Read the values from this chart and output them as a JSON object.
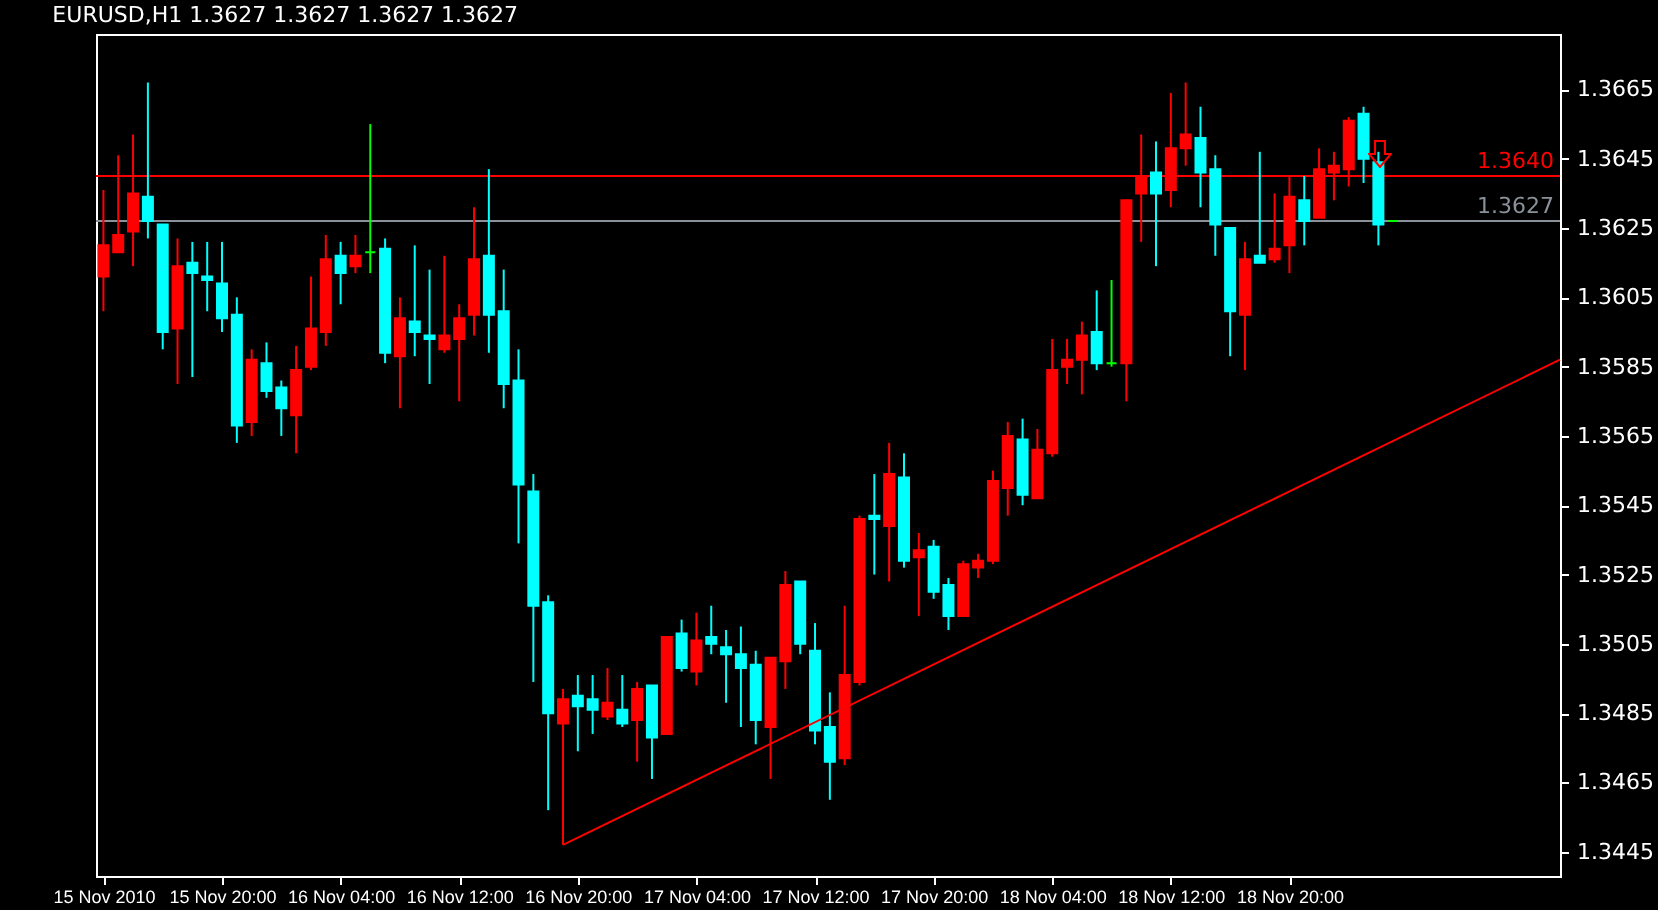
{
  "chart_data": {
    "type": "candlestick",
    "title": "EURUSD,H1  1.3627 1.3627 1.3627 1.3627",
    "x": [
      "2010-11-15T12:00",
      "2010-11-15T13:00",
      "2010-11-15T14:00",
      "2010-11-15T15:00",
      "2010-11-15T16:00",
      "2010-11-15T17:00",
      "2010-11-15T18:00",
      "2010-11-15T19:00",
      "2010-11-15T20:00",
      "2010-11-15T21:00",
      "2010-11-15T22:00",
      "2010-11-15T23:00",
      "2010-11-16T00:00",
      "2010-11-16T01:00",
      "2010-11-16T02:00",
      "2010-11-16T03:00",
      "2010-11-16T04:00",
      "2010-11-16T05:00",
      "2010-11-16T06:00",
      "2010-11-16T07:00",
      "2010-11-16T08:00",
      "2010-11-16T09:00",
      "2010-11-16T10:00",
      "2010-11-16T11:00",
      "2010-11-16T12:00",
      "2010-11-16T13:00",
      "2010-11-16T14:00",
      "2010-11-16T15:00",
      "2010-11-16T16:00",
      "2010-11-16T17:00",
      "2010-11-16T18:00",
      "2010-11-16T19:00",
      "2010-11-16T20:00",
      "2010-11-16T21:00",
      "2010-11-16T22:00",
      "2010-11-16T23:00",
      "2010-11-17T00:00",
      "2010-11-17T01:00",
      "2010-11-17T02:00",
      "2010-11-17T03:00",
      "2010-11-17T04:00",
      "2010-11-17T05:00",
      "2010-11-17T06:00",
      "2010-11-17T07:00",
      "2010-11-17T08:00",
      "2010-11-17T09:00",
      "2010-11-17T10:00",
      "2010-11-17T11:00",
      "2010-11-17T12:00",
      "2010-11-17T13:00",
      "2010-11-17T14:00",
      "2010-11-17T15:00",
      "2010-11-17T16:00",
      "2010-11-17T17:00",
      "2010-11-17T18:00",
      "2010-11-17T19:00",
      "2010-11-17T20:00",
      "2010-11-17T21:00",
      "2010-11-17T22:00",
      "2010-11-17T23:00",
      "2010-11-18T00:00",
      "2010-11-18T01:00",
      "2010-11-18T02:00",
      "2010-11-18T03:00",
      "2010-11-18T04:00",
      "2010-11-18T05:00",
      "2010-11-18T06:00",
      "2010-11-18T07:00",
      "2010-11-18T08:00",
      "2010-11-18T09:00",
      "2010-11-18T10:00",
      "2010-11-18T11:00",
      "2010-11-18T12:00",
      "2010-11-18T13:00",
      "2010-11-18T14:00",
      "2010-11-18T15:00",
      "2010-11-18T16:00",
      "2010-11-18T17:00",
      "2010-11-18T18:00",
      "2010-11-18T19:00",
      "2010-11-18T20:00",
      "2010-11-18T21:00",
      "2010-11-18T22:00",
      "2010-11-18T23:00",
      "2010-11-19T00:00",
      "2010-11-19T01:00",
      "2010-11-19T02:00",
      "2010-11-19T03:00"
    ],
    "ohlc": [
      [
        1.3611,
        1.3636,
        1.3601,
        1.362
      ],
      [
        1.3618,
        1.3646,
        1.3618,
        1.3623
      ],
      [
        1.3624,
        1.3652,
        1.3614,
        1.3635
      ],
      [
        1.3634,
        1.3667,
        1.3622,
        1.3627
      ],
      [
        1.3626,
        1.3626,
        1.359,
        1.3595
      ],
      [
        1.3596,
        1.3622,
        1.358,
        1.3614
      ],
      [
        1.3615,
        1.3621,
        1.3582,
        1.3612
      ],
      [
        1.3611,
        1.3621,
        1.3601,
        1.361
      ],
      [
        1.3609,
        1.3621,
        1.3595,
        1.3599
      ],
      [
        1.36,
        1.3605,
        1.3563,
        1.3568
      ],
      [
        1.3569,
        1.359,
        1.3565,
        1.3587
      ],
      [
        1.3586,
        1.3592,
        1.3576,
        1.3578
      ],
      [
        1.3579,
        1.3581,
        1.3565,
        1.3573
      ],
      [
        1.3571,
        1.3591,
        1.356,
        1.3584
      ],
      [
        1.3585,
        1.3611,
        1.3584,
        1.3596
      ],
      [
        1.3595,
        1.3623,
        1.3591,
        1.3616
      ],
      [
        1.3617,
        1.3621,
        1.3603,
        1.3612
      ],
      [
        1.3614,
        1.3623,
        1.3612,
        1.3617
      ],
      [
        1.3618,
        1.3655,
        1.3612,
        1.3618
      ],
      [
        1.3619,
        1.3622,
        1.3586,
        1.3589
      ],
      [
        1.3588,
        1.3605,
        1.3573,
        1.3599
      ],
      [
        1.3598,
        1.362,
        1.3588,
        1.3595
      ],
      [
        1.3594,
        1.3613,
        1.358,
        1.3593
      ],
      [
        1.359,
        1.3617,
        1.3589,
        1.3594
      ],
      [
        1.3593,
        1.3603,
        1.3575,
        1.3599
      ],
      [
        1.36,
        1.3631,
        1.3594,
        1.3616
      ],
      [
        1.3617,
        1.3642,
        1.3589,
        1.36
      ],
      [
        1.3601,
        1.3613,
        1.3573,
        1.358
      ],
      [
        1.3581,
        1.359,
        1.3534,
        1.3551
      ],
      [
        1.3549,
        1.3554,
        1.3494,
        1.3516
      ],
      [
        1.3517,
        1.3519,
        1.3457,
        1.3485
      ],
      [
        1.3482,
        1.3492,
        1.3447,
        1.3489
      ],
      [
        1.349,
        1.3496,
        1.3474,
        1.3487
      ],
      [
        1.3489,
        1.3496,
        1.3479,
        1.3486
      ],
      [
        1.3484,
        1.3498,
        1.3483,
        1.3488
      ],
      [
        1.3486,
        1.3496,
        1.3481,
        1.3482
      ],
      [
        1.3483,
        1.3494,
        1.3471,
        1.3492
      ],
      [
        1.3493,
        1.3493,
        1.3466,
        1.3478
      ],
      [
        1.3479,
        1.3507,
        1.3479,
        1.3507
      ],
      [
        1.3508,
        1.3512,
        1.3497,
        1.3498
      ],
      [
        1.3497,
        1.3514,
        1.3493,
        1.3506
      ],
      [
        1.3507,
        1.3516,
        1.3502,
        1.3505
      ],
      [
        1.3504,
        1.3509,
        1.3488,
        1.3502
      ],
      [
        1.3502,
        1.351,
        1.3481,
        1.3498
      ],
      [
        1.3499,
        1.3503,
        1.3476,
        1.3483
      ],
      [
        1.3481,
        1.3501,
        1.3466,
        1.3501
      ],
      [
        1.35,
        1.3526,
        1.3492,
        1.3522
      ],
      [
        1.3523,
        1.3523,
        1.3502,
        1.3505
      ],
      [
        1.3503,
        1.3511,
        1.3476,
        1.348
      ],
      [
        1.3481,
        1.3491,
        1.346,
        1.3471
      ],
      [
        1.3472,
        1.3516,
        1.347,
        1.3496
      ],
      [
        1.3494,
        1.3542,
        1.3493,
        1.3541
      ],
      [
        1.3542,
        1.3554,
        1.3525,
        1.3541
      ],
      [
        1.3539,
        1.3563,
        1.3523,
        1.3554
      ],
      [
        1.3553,
        1.356,
        1.3527,
        1.3529
      ],
      [
        1.353,
        1.3537,
        1.3513,
        1.3532
      ],
      [
        1.3533,
        1.3535,
        1.3518,
        1.352
      ],
      [
        1.3522,
        1.3524,
        1.3509,
        1.3513
      ],
      [
        1.3513,
        1.3529,
        1.3513,
        1.3528
      ],
      [
        1.3527,
        1.3531,
        1.3524,
        1.3529
      ],
      [
        1.3529,
        1.3555,
        1.3528,
        1.3552
      ],
      [
        1.355,
        1.3569,
        1.3542,
        1.3565
      ],
      [
        1.3564,
        1.357,
        1.3545,
        1.3548
      ],
      [
        1.3547,
        1.3567,
        1.3547,
        1.3561
      ],
      [
        1.356,
        1.3593,
        1.3559,
        1.3584
      ],
      [
        1.3585,
        1.3593,
        1.358,
        1.3587
      ],
      [
        1.3587,
        1.3598,
        1.3577,
        1.3594
      ],
      [
        1.3595,
        1.3607,
        1.3584,
        1.3586
      ],
      [
        1.3586,
        1.361,
        1.3585,
        1.3586
      ],
      [
        1.3586,
        1.3633,
        1.3575,
        1.3633
      ],
      [
        1.3635,
        1.3652,
        1.3621,
        1.364
      ],
      [
        1.3641,
        1.365,
        1.3614,
        1.3635
      ],
      [
        1.3636,
        1.3664,
        1.3631,
        1.3648
      ],
      [
        1.3648,
        1.3667,
        1.3643,
        1.3652
      ],
      [
        1.3651,
        1.366,
        1.3631,
        1.3641
      ],
      [
        1.3642,
        1.3646,
        1.3617,
        1.3626
      ],
      [
        1.3625,
        1.3625,
        1.3588,
        1.3601
      ],
      [
        1.36,
        1.3621,
        1.3584,
        1.3616
      ],
      [
        1.3617,
        1.3647,
        1.3615,
        1.3615
      ],
      [
        1.3616,
        1.3635,
        1.3615,
        1.3619
      ],
      [
        1.362,
        1.364,
        1.3612,
        1.3634
      ],
      [
        1.3633,
        1.364,
        1.362,
        1.3627
      ],
      [
        1.3628,
        1.3648,
        1.3628,
        1.3642
      ],
      [
        1.3641,
        1.3647,
        1.3633,
        1.3643
      ],
      [
        1.3642,
        1.3657,
        1.3637,
        1.3656
      ],
      [
        1.3658,
        1.366,
        1.3638,
        1.3645
      ],
      [
        1.3644,
        1.3647,
        1.362,
        1.3626
      ],
      [
        1.3627,
        1.3627,
        1.3627,
        1.3627
      ]
    ],
    "colors": [
      "#ff0000",
      "#ff0000",
      "#ff0000",
      "#00ffff",
      "#00ffff",
      "#ff0000",
      "#00ffff",
      "#00ffff",
      "#00ffff",
      "#00ffff",
      "#ff0000",
      "#00ffff",
      "#00ffff",
      "#ff0000",
      "#ff0000",
      "#ff0000",
      "#00ffff",
      "#ff0000",
      "#00ff00",
      "#00ffff",
      "#ff0000",
      "#00ffff",
      "#00ffff",
      "#ff0000",
      "#ff0000",
      "#ff0000",
      "#00ffff",
      "#00ffff",
      "#00ffff",
      "#00ffff",
      "#00ffff",
      "#ff0000",
      "#00ffff",
      "#00ffff",
      "#ff0000",
      "#00ffff",
      "#ff0000",
      "#00ffff",
      "#ff0000",
      "#00ffff",
      "#ff0000",
      "#00ffff",
      "#00ffff",
      "#00ffff",
      "#00ffff",
      "#ff0000",
      "#ff0000",
      "#00ffff",
      "#00ffff",
      "#00ffff",
      "#ff0000",
      "#ff0000",
      "#00ffff",
      "#ff0000",
      "#00ffff",
      "#ff0000",
      "#00ffff",
      "#00ffff",
      "#ff0000",
      "#ff0000",
      "#ff0000",
      "#ff0000",
      "#00ffff",
      "#ff0000",
      "#ff0000",
      "#ff0000",
      "#ff0000",
      "#00ffff",
      "#00ff00",
      "#ff0000",
      "#ff0000",
      "#00ffff",
      "#ff0000",
      "#ff0000",
      "#00ffff",
      "#00ffff",
      "#00ffff",
      "#ff0000",
      "#00ffff",
      "#ff0000",
      "#ff0000",
      "#00ffff",
      "#ff0000",
      "#ff0000",
      "#ff0000",
      "#00ffff",
      "#00ffff",
      "#00ff00"
    ],
    "series": [
      {
        "type": "line",
        "x": [
          "2010-11-16T19:00",
          "2010-11-19T14:15"
        ],
        "values": [
          1.3447,
          1.3587
        ],
        "color": "#ff0000"
      }
    ],
    "ref_lines": [
      {
        "axis": "y",
        "value": 1.364,
        "label": "1.3640",
        "color": "#ff0000"
      },
      {
        "axis": "y",
        "value": 1.3627,
        "label": "1.3627",
        "color": "#8a9199"
      }
    ],
    "xlim": [
      "2010-11-15T11:30",
      "2010-11-19T14:15"
    ],
    "xticks": [
      {
        "value": "2010-11-15T12:00",
        "label": "15 Nov 2010"
      },
      {
        "value": "2010-11-15T20:00",
        "label": "15 Nov 20:00"
      },
      {
        "value": "2010-11-16T04:00",
        "label": "16 Nov 04:00"
      },
      {
        "value": "2010-11-16T12:00",
        "label": "16 Nov 12:00"
      },
      {
        "value": "2010-11-16T20:00",
        "label": "16 Nov 20:00"
      },
      {
        "value": "2010-11-17T04:00",
        "label": "17 Nov 04:00"
      },
      {
        "value": "2010-11-17T12:00",
        "label": "17 Nov 12:00"
      },
      {
        "value": "2010-11-17T20:00",
        "label": "17 Nov 20:00"
      },
      {
        "value": "2010-11-18T04:00",
        "label": "18 Nov 04:00"
      },
      {
        "value": "2010-11-18T12:00",
        "label": "18 Nov 12:00"
      },
      {
        "value": "2010-11-18T20:00",
        "label": "18 Nov 20:00"
      }
    ],
    "ylim": [
      1.3438,
      1.3681
    ],
    "yticks": [
      1.3665,
      1.3645,
      1.3625,
      1.3605,
      1.3585,
      1.3565,
      1.3545,
      1.3525,
      1.3505,
      1.3485,
      1.3465,
      1.3445
    ]
  }
}
